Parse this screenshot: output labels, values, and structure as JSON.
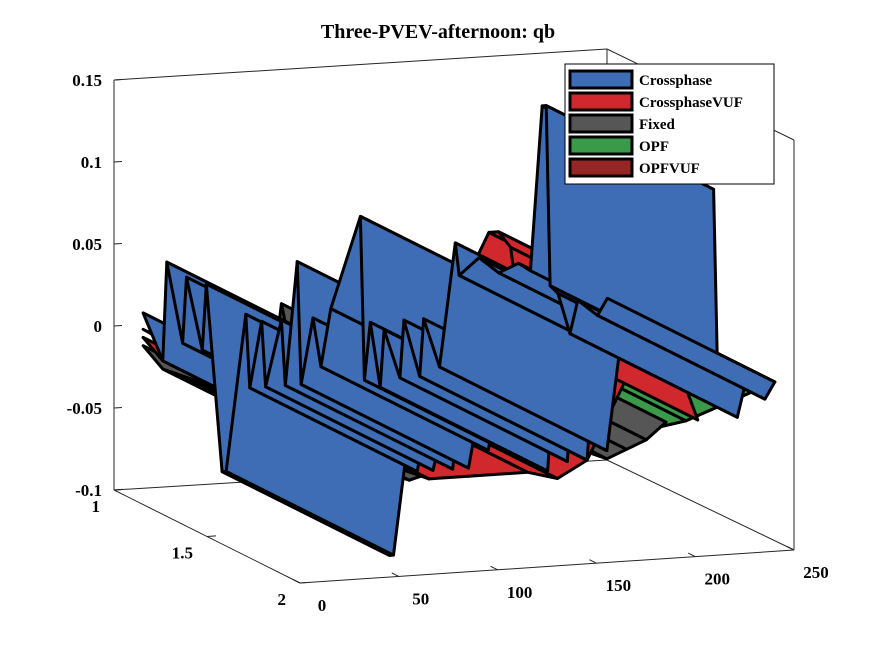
{
  "chart_data": {
    "type": "area",
    "title": "Three-PVEV-afternoon: qb",
    "xlabel": "",
    "ylabel": "",
    "zlabel": "",
    "x_ticks": [
      "0",
      "50",
      "100",
      "150",
      "200",
      "250"
    ],
    "y_ticks": [
      "1",
      "1.5",
      "2"
    ],
    "z_ticks": [
      "0.15",
      "0.1",
      "0.05",
      "0",
      "-0.05",
      "-0.1"
    ],
    "xlim": [
      0,
      250
    ],
    "ylim": [
      1,
      2
    ],
    "zlim": [
      -0.1,
      0.15
    ],
    "grid": false,
    "box": true,
    "legend_position": "top-right",
    "series": [
      {
        "name": "Crossphase",
        "color": "#3e6db5",
        "points": [
          [
            10,
            0.01
          ],
          [
            20,
            -0.02
          ],
          [
            22,
            0.04
          ],
          [
            30,
            -0.01
          ],
          [
            32,
            0.03
          ],
          [
            40,
            -0.015
          ],
          [
            42,
            0.025
          ],
          [
            50,
            -0.09
          ],
          [
            52,
            -0.09
          ],
          [
            62,
            0.005
          ],
          [
            64,
            -0.04
          ],
          [
            70,
            0.0
          ],
          [
            72,
            -0.04
          ],
          [
            80,
            0.0
          ],
          [
            82,
            -0.04
          ],
          [
            88,
            0.035
          ],
          [
            90,
            -0.04
          ],
          [
            96,
            0.0
          ],
          [
            100,
            -0.03
          ],
          [
            105,
            0.005
          ],
          [
            120,
            0.06
          ],
          [
            122,
            -0.04
          ],
          [
            125,
            -0.005
          ],
          [
            130,
            -0.045
          ],
          [
            132,
            -0.01
          ],
          [
            140,
            -0.04
          ],
          [
            142,
            -0.005
          ],
          [
            150,
            -0.04
          ],
          [
            152,
            -0.005
          ],
          [
            160,
            -0.035
          ],
          [
            168,
            0.04
          ],
          [
            170,
            0.02
          ],
          [
            180,
            0.03
          ],
          [
            190,
            0.02
          ],
          [
            200,
            0.025
          ],
          [
            206,
            0.02
          ],
          [
            212,
            0.12
          ],
          [
            214,
            0.12
          ],
          [
            216,
            0.01
          ],
          [
            220,
            0.005
          ],
          [
            226,
            -0.02
          ],
          [
            230,
            0.0
          ],
          [
            240,
            -0.01
          ],
          [
            245,
            0.0
          ]
        ]
      },
      {
        "name": "CrossphaseVUF",
        "color": "#d0282d",
        "points": [
          [
            10,
            -0.005
          ],
          [
            20,
            -0.02
          ],
          [
            30,
            -0.025
          ],
          [
            40,
            -0.03
          ],
          [
            50,
            -0.035
          ],
          [
            60,
            -0.04
          ],
          [
            70,
            -0.045
          ],
          [
            120,
            -0.045
          ],
          [
            135,
            -0.05
          ],
          [
            150,
            -0.04
          ],
          [
            185,
            0.045
          ],
          [
            190,
            0.045
          ],
          [
            196,
            0.035
          ],
          [
            200,
            0.0
          ],
          [
            206,
            -0.02
          ]
        ]
      },
      {
        "name": "Fixed",
        "color": "#565656",
        "points": [
          [
            10,
            -0.01
          ],
          [
            20,
            -0.025
          ],
          [
            30,
            -0.03
          ],
          [
            40,
            -0.035
          ],
          [
            50,
            -0.04
          ],
          [
            60,
            -0.045
          ],
          [
            75,
            -0.04
          ],
          [
            80,
            0.01
          ],
          [
            85,
            -0.02
          ],
          [
            90,
            -0.045
          ],
          [
            95,
            -0.02
          ],
          [
            100,
            -0.04
          ],
          [
            110,
            -0.03
          ],
          [
            120,
            -0.04
          ],
          [
            130,
            -0.035
          ],
          [
            140,
            -0.04
          ],
          [
            150,
            -0.035
          ],
          [
            160,
            -0.04
          ],
          [
            170,
            -0.035
          ],
          [
            180,
            -0.03
          ],
          [
            190,
            -0.02
          ]
        ]
      },
      {
        "name": "OPF",
        "color": "#3a9a4a",
        "points": [
          [
            10,
            0.0
          ],
          [
            50,
            -0.03
          ],
          [
            100,
            -0.03
          ],
          [
            150,
            -0.03
          ],
          [
            200,
            -0.02
          ],
          [
            245,
            0.0
          ]
        ]
      },
      {
        "name": "OPFVUF",
        "color": "#962626",
        "points": [
          [
            10,
            -0.005
          ],
          [
            50,
            -0.035
          ],
          [
            100,
            -0.035
          ],
          [
            150,
            -0.03
          ],
          [
            200,
            -0.02
          ],
          [
            245,
            0.0
          ]
        ]
      }
    ]
  }
}
